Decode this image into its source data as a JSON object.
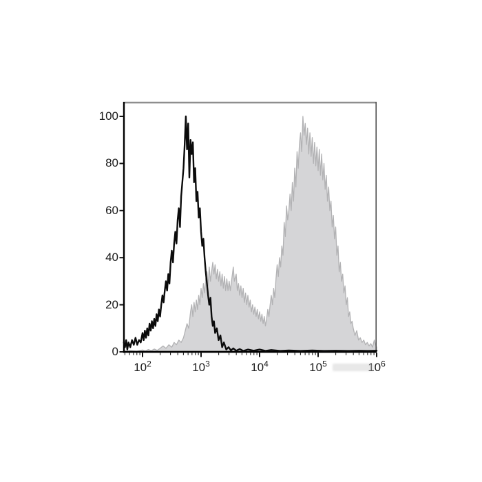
{
  "figure": {
    "kind": "flow-cytometry-overlay-histogram",
    "background_color": "#ffffff"
  },
  "chart_data": {
    "type": "area",
    "subtype": "flow-cytometry-overlay-histogram",
    "title": "",
    "xlabel": "",
    "ylabel": "",
    "x_scale": "log10",
    "x_domain_log10": [
      1.68,
      6.0
    ],
    "y_domain": [
      0,
      106
    ],
    "grid": false,
    "legend": null,
    "x_ticks": [
      {
        "base": "10",
        "exp": "2"
      },
      {
        "base": "10",
        "exp": "3"
      },
      {
        "base": "10",
        "exp": "4"
      },
      {
        "base": "10",
        "exp": "5"
      },
      {
        "base": "10",
        "exp": "6"
      }
    ],
    "x_minor_ticks": "log-decade-2-to-9",
    "y_ticks": [
      "0",
      "20",
      "40",
      "60",
      "80",
      "100"
    ],
    "axis_colors": {
      "left": "#000000",
      "bottom": "#000000",
      "top": "#8e8e8e",
      "right": "#4d4d4d"
    },
    "series": [
      {
        "name": "unstained-control-open-histogram",
        "style": "open",
        "stroke": "#0b0b0b",
        "stroke_width": 2.4,
        "fill": "none",
        "peak_log10x": 2.74,
        "peak_y": 100,
        "points_log10x_y": [
          [
            1.68,
            4
          ],
          [
            1.7,
            2
          ],
          [
            1.72,
            5
          ],
          [
            1.74,
            1
          ],
          [
            1.76,
            4
          ],
          [
            1.79,
            2
          ],
          [
            1.82,
            5
          ],
          [
            1.85,
            3
          ],
          [
            1.88,
            6
          ],
          [
            1.91,
            3
          ],
          [
            1.94,
            5
          ],
          [
            1.97,
            4
          ],
          [
            2.0,
            8
          ],
          [
            2.02,
            5
          ],
          [
            2.04,
            9
          ],
          [
            2.06,
            6
          ],
          [
            2.08,
            10
          ],
          [
            2.1,
            7
          ],
          [
            2.12,
            12
          ],
          [
            2.14,
            9
          ],
          [
            2.16,
            13
          ],
          [
            2.18,
            10
          ],
          [
            2.2,
            14
          ],
          [
            2.22,
            11
          ],
          [
            2.24,
            16
          ],
          [
            2.26,
            13
          ],
          [
            2.28,
            18
          ],
          [
            2.3,
            15
          ],
          [
            2.32,
            20
          ],
          [
            2.34,
            24
          ],
          [
            2.36,
            21
          ],
          [
            2.38,
            26
          ],
          [
            2.4,
            30
          ],
          [
            2.42,
            26
          ],
          [
            2.44,
            33
          ],
          [
            2.46,
            29
          ],
          [
            2.48,
            38
          ],
          [
            2.5,
            43
          ],
          [
            2.52,
            38
          ],
          [
            2.54,
            46
          ],
          [
            2.56,
            51
          ],
          [
            2.58,
            46
          ],
          [
            2.6,
            56
          ],
          [
            2.62,
            61
          ],
          [
            2.64,
            53
          ],
          [
            2.66,
            66
          ],
          [
            2.68,
            72
          ],
          [
            2.7,
            78
          ],
          [
            2.72,
            88
          ],
          [
            2.74,
            100
          ],
          [
            2.76,
            86
          ],
          [
            2.78,
            97
          ],
          [
            2.8,
            74
          ],
          [
            2.82,
            90
          ],
          [
            2.84,
            84
          ],
          [
            2.86,
            89
          ],
          [
            2.88,
            72
          ],
          [
            2.9,
            78
          ],
          [
            2.92,
            64
          ],
          [
            2.94,
            68
          ],
          [
            2.96,
            57
          ],
          [
            2.98,
            61
          ],
          [
            3.0,
            51
          ],
          [
            3.02,
            45
          ],
          [
            3.04,
            48
          ],
          [
            3.06,
            40
          ],
          [
            3.08,
            34
          ],
          [
            3.1,
            29
          ],
          [
            3.12,
            24
          ],
          [
            3.14,
            20
          ],
          [
            3.16,
            23
          ],
          [
            3.18,
            15
          ],
          [
            3.2,
            11
          ],
          [
            3.22,
            13
          ],
          [
            3.24,
            8
          ],
          [
            3.27,
            10
          ],
          [
            3.3,
            5
          ],
          [
            3.33,
            7
          ],
          [
            3.36,
            2
          ],
          [
            3.39,
            4
          ],
          [
            3.43,
            1
          ],
          [
            3.47,
            2
          ],
          [
            3.51,
            0.6
          ],
          [
            3.55,
            1.5
          ],
          [
            3.6,
            0.5
          ],
          [
            3.66,
            1.2
          ],
          [
            3.72,
            0.4
          ],
          [
            3.8,
            1
          ],
          [
            3.9,
            0.5
          ],
          [
            4.0,
            1
          ],
          [
            4.1,
            0.4
          ],
          [
            4.2,
            0.8
          ],
          [
            4.35,
            0.4
          ],
          [
            4.5,
            0.6
          ],
          [
            4.7,
            0.4
          ],
          [
            4.9,
            0.6
          ],
          [
            5.1,
            0.4
          ],
          [
            5.3,
            0.5
          ],
          [
            5.5,
            0.4
          ],
          [
            5.7,
            0.5
          ],
          [
            5.85,
            0.4
          ],
          [
            6.0,
            0.5
          ]
        ]
      },
      {
        "name": "stained-filled-histogram",
        "style": "filled",
        "stroke": "#b2b2b4",
        "stroke_width": 1.3,
        "fill": "#d5d5d7",
        "peak_log10x": 4.74,
        "peak_y": 100,
        "points_log10x_y": [
          [
            1.7,
            0.3
          ],
          [
            1.8,
            0.5
          ],
          [
            1.9,
            0.3
          ],
          [
            2.0,
            0.8
          ],
          [
            2.05,
            0.4
          ],
          [
            2.1,
            1
          ],
          [
            2.15,
            0.5
          ],
          [
            2.2,
            1.2
          ],
          [
            2.25,
            0.6
          ],
          [
            2.3,
            1.5
          ],
          [
            2.35,
            2.5
          ],
          [
            2.4,
            1.5
          ],
          [
            2.45,
            3
          ],
          [
            2.5,
            2
          ],
          [
            2.54,
            4
          ],
          [
            2.58,
            3
          ],
          [
            2.62,
            5
          ],
          [
            2.66,
            4
          ],
          [
            2.7,
            6
          ],
          [
            2.73,
            9
          ],
          [
            2.76,
            12
          ],
          [
            2.79,
            10
          ],
          [
            2.82,
            17
          ],
          [
            2.84,
            20
          ],
          [
            2.86,
            15
          ],
          [
            2.88,
            21
          ],
          [
            2.9,
            17
          ],
          [
            2.92,
            22
          ],
          [
            2.94,
            18
          ],
          [
            2.96,
            24
          ],
          [
            2.98,
            20
          ],
          [
            3.0,
            27
          ],
          [
            3.02,
            23
          ],
          [
            3.04,
            29
          ],
          [
            3.06,
            25
          ],
          [
            3.08,
            31
          ],
          [
            3.1,
            34
          ],
          [
            3.12,
            28
          ],
          [
            3.14,
            36
          ],
          [
            3.16,
            30
          ],
          [
            3.18,
            34
          ],
          [
            3.2,
            38
          ],
          [
            3.22,
            33
          ],
          [
            3.24,
            37
          ],
          [
            3.26,
            31
          ],
          [
            3.28,
            35
          ],
          [
            3.3,
            30
          ],
          [
            3.32,
            34
          ],
          [
            3.34,
            28
          ],
          [
            3.36,
            33
          ],
          [
            3.38,
            27
          ],
          [
            3.4,
            32
          ],
          [
            3.42,
            26
          ],
          [
            3.44,
            31
          ],
          [
            3.46,
            26
          ],
          [
            3.48,
            30
          ],
          [
            3.5,
            26
          ],
          [
            3.52,
            30
          ],
          [
            3.55,
            36
          ],
          [
            3.57,
            30
          ],
          [
            3.6,
            33
          ],
          [
            3.62,
            26
          ],
          [
            3.64,
            29
          ],
          [
            3.66,
            24
          ],
          [
            3.68,
            28
          ],
          [
            3.7,
            23
          ],
          [
            3.72,
            27
          ],
          [
            3.74,
            21
          ],
          [
            3.76,
            25
          ],
          [
            3.78,
            20
          ],
          [
            3.8,
            24
          ],
          [
            3.82,
            19
          ],
          [
            3.84,
            22
          ],
          [
            3.86,
            17
          ],
          [
            3.88,
            20
          ],
          [
            3.9,
            16
          ],
          [
            3.92,
            19
          ],
          [
            3.94,
            15
          ],
          [
            3.96,
            18
          ],
          [
            3.98,
            14
          ],
          [
            4.0,
            17
          ],
          [
            4.02,
            13
          ],
          [
            4.04,
            16
          ],
          [
            4.06,
            12
          ],
          [
            4.08,
            15
          ],
          [
            4.1,
            11
          ],
          [
            4.12,
            14
          ],
          [
            4.14,
            18
          ],
          [
            4.16,
            15
          ],
          [
            4.18,
            20
          ],
          [
            4.2,
            24
          ],
          [
            4.22,
            20
          ],
          [
            4.24,
            27
          ],
          [
            4.26,
            23
          ],
          [
            4.28,
            31
          ],
          [
            4.3,
            37
          ],
          [
            4.32,
            32
          ],
          [
            4.34,
            40
          ],
          [
            4.36,
            36
          ],
          [
            4.38,
            45
          ],
          [
            4.4,
            41
          ],
          [
            4.42,
            55
          ],
          [
            4.44,
            49
          ],
          [
            4.46,
            62
          ],
          [
            4.48,
            56
          ],
          [
            4.5,
            60
          ],
          [
            4.52,
            67
          ],
          [
            4.54,
            60
          ],
          [
            4.56,
            72
          ],
          [
            4.58,
            64
          ],
          [
            4.6,
            78
          ],
          [
            4.62,
            70
          ],
          [
            4.64,
            85
          ],
          [
            4.66,
            78
          ],
          [
            4.68,
            88
          ],
          [
            4.7,
            93
          ],
          [
            4.72,
            85
          ],
          [
            4.74,
            100
          ],
          [
            4.76,
            92
          ],
          [
            4.78,
            97
          ],
          [
            4.8,
            88
          ],
          [
            4.82,
            95
          ],
          [
            4.84,
            84
          ],
          [
            4.86,
            93
          ],
          [
            4.88,
            83
          ],
          [
            4.9,
            91
          ],
          [
            4.92,
            80
          ],
          [
            4.94,
            89
          ],
          [
            4.96,
            79
          ],
          [
            4.98,
            87
          ],
          [
            5.0,
            77
          ],
          [
            5.02,
            86
          ],
          [
            5.04,
            75
          ],
          [
            5.06,
            84
          ],
          [
            5.08,
            73
          ],
          [
            5.1,
            80
          ],
          [
            5.12,
            69
          ],
          [
            5.14,
            75
          ],
          [
            5.16,
            64
          ],
          [
            5.18,
            70
          ],
          [
            5.2,
            60
          ],
          [
            5.22,
            64
          ],
          [
            5.24,
            53
          ],
          [
            5.26,
            58
          ],
          [
            5.28,
            48
          ],
          [
            5.3,
            53
          ],
          [
            5.32,
            41
          ],
          [
            5.34,
            45
          ],
          [
            5.36,
            34
          ],
          [
            5.38,
            38
          ],
          [
            5.4,
            30
          ],
          [
            5.42,
            33
          ],
          [
            5.44,
            25
          ],
          [
            5.46,
            28
          ],
          [
            5.48,
            20
          ],
          [
            5.5,
            23
          ],
          [
            5.52,
            15
          ],
          [
            5.54,
            17
          ],
          [
            5.56,
            12
          ],
          [
            5.58,
            13
          ],
          [
            5.6,
            10
          ],
          [
            5.63,
            7
          ],
          [
            5.66,
            9
          ],
          [
            5.69,
            5
          ],
          [
            5.72,
            6
          ],
          [
            5.75,
            4
          ],
          [
            5.78,
            5
          ],
          [
            5.81,
            3
          ],
          [
            5.84,
            4
          ],
          [
            5.87,
            2.5
          ],
          [
            5.9,
            3.5
          ],
          [
            5.93,
            2
          ],
          [
            5.96,
            5
          ],
          [
            5.98,
            3
          ],
          [
            6.0,
            2
          ]
        ]
      }
    ]
  },
  "watermark": {
    "present": true,
    "legible": false,
    "approx_color": "#cbcbcd"
  }
}
